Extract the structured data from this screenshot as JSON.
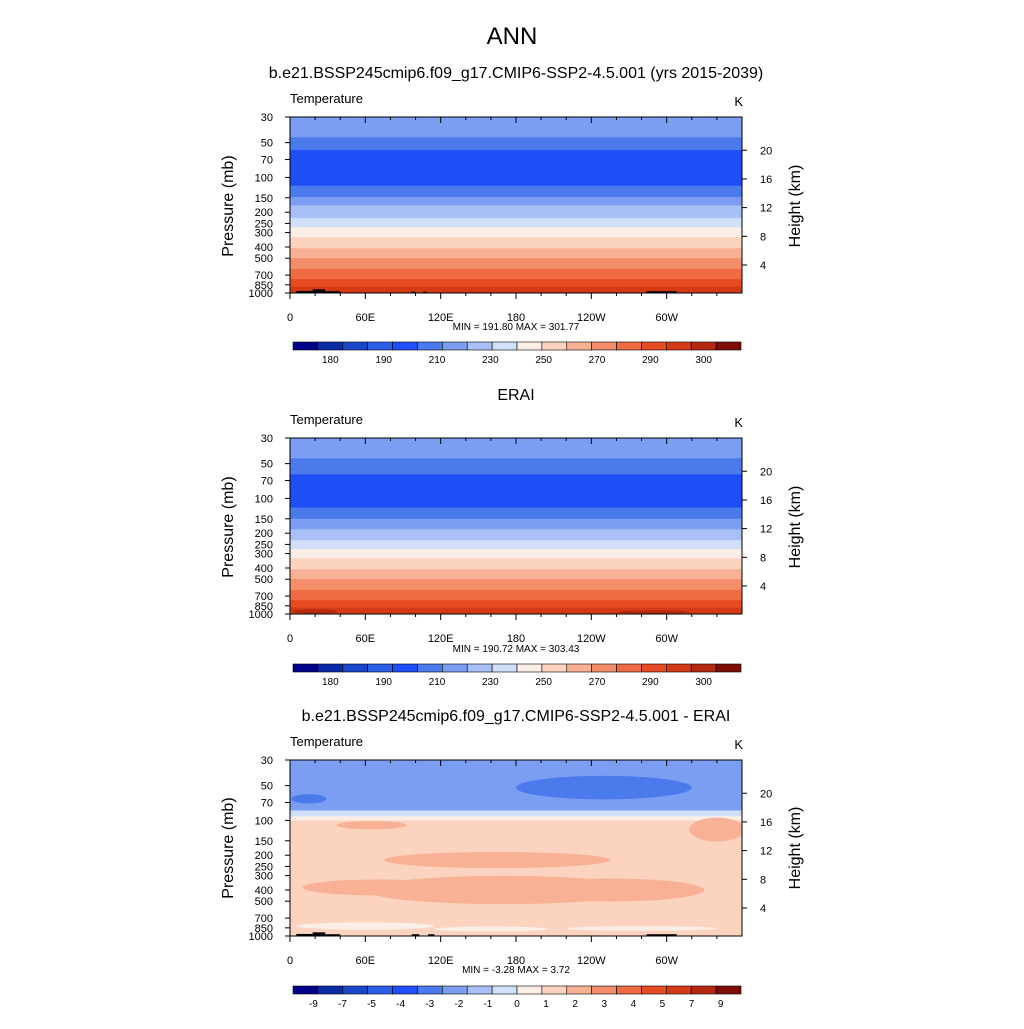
{
  "page": {
    "title": "ANN"
  },
  "palette": [
    "#00008b",
    "#0a2aa8",
    "#1a46cc",
    "#2a5fe8",
    "#1e4ef5",
    "#4a7aec",
    "#7b9ef2",
    "#a9c0f6",
    "#d2dffa",
    "#faeee6",
    "#fbd3bf",
    "#f8b194",
    "#f38d6a",
    "#ee6b43",
    "#e64b22",
    "#d53a16",
    "#b52a0e",
    "#7e0d05"
  ],
  "chart_data": [
    {
      "type": "heatmap",
      "title": "b.e21.BSSP245cmip6.f09_g17.CMIP6-SSP2-4.5.001 (yrs 2015-2039)",
      "variable_label": "Temperature",
      "units_label": "K",
      "ylabel": "Pressure (mb)",
      "ylabel_right": "Height (km)",
      "x_ticks": [
        "0",
        "60E",
        "120E",
        "180",
        "120W",
        "60W"
      ],
      "pressure_ticks": [
        "30",
        "50",
        "70",
        "100",
        "150",
        "200",
        "250",
        "300",
        "400",
        "500",
        "700",
        "850",
        "1000"
      ],
      "height_ticks": [
        "20",
        "16",
        "12",
        "8",
        "4"
      ],
      "stats_text": "MIN = 191.80  MAX = 301.77",
      "min": 191.8,
      "max": 301.77,
      "colorbar_labels": [
        "180",
        "190",
        "210",
        "230",
        "250",
        "270",
        "290",
        "300"
      ],
      "levels": [
        {
          "p_top": 30,
          "p_bot": 45,
          "color": "#7b9ef2"
        },
        {
          "p_top": 45,
          "p_bot": 58,
          "color": "#4a7aec"
        },
        {
          "p_top": 58,
          "p_bot": 118,
          "color": "#1e4ef5"
        },
        {
          "p_top": 118,
          "p_bot": 148,
          "color": "#4a7aec"
        },
        {
          "p_top": 148,
          "p_bot": 175,
          "color": "#7b9ef2"
        },
        {
          "p_top": 175,
          "p_bot": 225,
          "color": "#a9c0f6"
        },
        {
          "p_top": 225,
          "p_bot": 270,
          "color": "#d2dffa"
        },
        {
          "p_top": 270,
          "p_bot": 330,
          "color": "#faeee6"
        },
        {
          "p_top": 330,
          "p_bot": 410,
          "color": "#fbd3bf"
        },
        {
          "p_top": 410,
          "p_bot": 500,
          "color": "#f8b194"
        },
        {
          "p_top": 500,
          "p_bot": 620,
          "color": "#f38d6a"
        },
        {
          "p_top": 620,
          "p_bot": 760,
          "color": "#ee6b43"
        },
        {
          "p_top": 760,
          "p_bot": 880,
          "color": "#e64b22"
        },
        {
          "p_top": 880,
          "p_bot": 1000,
          "color": "#d53a16"
        }
      ],
      "blobs": [],
      "terrain": [
        {
          "lon0": 5,
          "lon1": 18,
          "p": 960
        },
        {
          "lon0": 18,
          "lon1": 28,
          "p": 930
        },
        {
          "lon0": 28,
          "lon1": 40,
          "p": 965
        },
        {
          "lon0": 97,
          "lon1": 100,
          "p": 975
        },
        {
          "lon0": 106,
          "lon1": 109,
          "p": 975
        },
        {
          "lon0": 284,
          "lon1": 308,
          "p": 965
        }
      ]
    },
    {
      "type": "heatmap",
      "title": "ERAI",
      "variable_label": "Temperature",
      "units_label": "K",
      "ylabel": "Pressure (mb)",
      "ylabel_right": "Height (km)",
      "x_ticks": [
        "0",
        "60E",
        "120E",
        "180",
        "120W",
        "60W"
      ],
      "pressure_ticks": [
        "30",
        "50",
        "70",
        "100",
        "150",
        "200",
        "250",
        "300",
        "400",
        "500",
        "700",
        "850",
        "1000"
      ],
      "height_ticks": [
        "20",
        "16",
        "12",
        "8",
        "4"
      ],
      "stats_text": "MIN = 190.72  MAX = 303.43",
      "min": 190.72,
      "max": 303.43,
      "colorbar_labels": [
        "180",
        "190",
        "210",
        "230",
        "250",
        "270",
        "290",
        "300"
      ],
      "levels": [
        {
          "p_top": 30,
          "p_bot": 45,
          "color": "#7b9ef2"
        },
        {
          "p_top": 45,
          "p_bot": 62,
          "color": "#4a7aec"
        },
        {
          "p_top": 62,
          "p_bot": 120,
          "color": "#1e4ef5"
        },
        {
          "p_top": 120,
          "p_bot": 150,
          "color": "#4a7aec"
        },
        {
          "p_top": 150,
          "p_bot": 185,
          "color": "#7b9ef2"
        },
        {
          "p_top": 185,
          "p_bot": 230,
          "color": "#a9c0f6"
        },
        {
          "p_top": 230,
          "p_bot": 275,
          "color": "#d2dffa"
        },
        {
          "p_top": 275,
          "p_bot": 330,
          "color": "#faeee6"
        },
        {
          "p_top": 330,
          "p_bot": 410,
          "color": "#fbd3bf"
        },
        {
          "p_top": 410,
          "p_bot": 500,
          "color": "#f8b194"
        },
        {
          "p_top": 500,
          "p_bot": 620,
          "color": "#f38d6a"
        },
        {
          "p_top": 620,
          "p_bot": 760,
          "color": "#ee6b43"
        },
        {
          "p_top": 760,
          "p_bot": 880,
          "color": "#e64b22"
        },
        {
          "p_top": 880,
          "p_bot": 1000,
          "color": "#d53a16"
        }
      ],
      "blobs": [
        {
          "lon": 20,
          "p": 950,
          "rlon": 18,
          "rp": 40,
          "color": "#b52a0e"
        },
        {
          "lon": 290,
          "p": 960,
          "rlon": 28,
          "rp": 35,
          "color": "#b52a0e"
        }
      ],
      "terrain": []
    },
    {
      "type": "heatmap",
      "title": "b.e21.BSSP245cmip6.f09_g17.CMIP6-SSP2-4.5.001 - ERAI",
      "variable_label": "Temperature",
      "units_label": "K",
      "ylabel": "Pressure (mb)",
      "ylabel_right": "Height (km)",
      "x_ticks": [
        "0",
        "60E",
        "120E",
        "180",
        "120W",
        "60W"
      ],
      "pressure_ticks": [
        "30",
        "50",
        "70",
        "100",
        "150",
        "200",
        "250",
        "300",
        "400",
        "500",
        "700",
        "850",
        "1000"
      ],
      "height_ticks": [
        "20",
        "16",
        "12",
        "8",
        "4"
      ],
      "stats_text": "MIN = -3.28  MAX =  3.72",
      "min": -3.28,
      "max": 3.72,
      "colorbar_labels": [
        "-9",
        "-7",
        "-5",
        "-4",
        "-3",
        "-2",
        "-1",
        "0",
        "1",
        "2",
        "3",
        "4",
        "5",
        "7",
        "9"
      ],
      "levels": [
        {
          "p_top": 30,
          "p_bot": 82,
          "color": "#7b9ef2"
        },
        {
          "p_top": 82,
          "p_bot": 92,
          "color": "#d2dffa"
        },
        {
          "p_top": 92,
          "p_bot": 100,
          "color": "#faeee6"
        },
        {
          "p_top": 100,
          "p_bot": 1000,
          "color": "#fbd3bf"
        }
      ],
      "blobs": [
        {
          "lon": 165,
          "p": 220,
          "rlon": 90,
          "rp": 35,
          "color": "#f8b194"
        },
        {
          "lon": 70,
          "p": 380,
          "rlon": 60,
          "rp": 60,
          "color": "#f8b194"
        },
        {
          "lon": 170,
          "p": 400,
          "rlon": 110,
          "rp": 110,
          "color": "#f8b194"
        },
        {
          "lon": 255,
          "p": 400,
          "rlon": 75,
          "rp": 90,
          "color": "#f8b194"
        },
        {
          "lon": 65,
          "p": 110,
          "rlon": 28,
          "rp": 9,
          "color": "#f8b194"
        },
        {
          "lon": 340,
          "p": 120,
          "rlon": 22,
          "rp": 28,
          "color": "#f8b194"
        },
        {
          "lon": 250,
          "p": 52,
          "rlon": 70,
          "rp": 12,
          "color": "#4a7aec"
        },
        {
          "lon": 15,
          "p": 65,
          "rlon": 14,
          "rp": 6,
          "color": "#4a7aec"
        },
        {
          "lon": 60,
          "p": 820,
          "rlon": 55,
          "rp": 60,
          "color": "#faeee6"
        },
        {
          "lon": 280,
          "p": 860,
          "rlon": 60,
          "rp": 40,
          "color": "#faeee6"
        },
        {
          "lon": 160,
          "p": 870,
          "rlon": 45,
          "rp": 45,
          "color": "#faeee6"
        }
      ],
      "terrain": [
        {
          "lon0": 5,
          "lon1": 18,
          "p": 960
        },
        {
          "lon0": 18,
          "lon1": 28,
          "p": 930
        },
        {
          "lon0": 28,
          "lon1": 40,
          "p": 965
        },
        {
          "lon0": 97,
          "lon1": 103,
          "p": 965
        },
        {
          "lon0": 110,
          "lon1": 115,
          "p": 965
        },
        {
          "lon0": 284,
          "lon1": 308,
          "p": 965
        }
      ]
    }
  ]
}
